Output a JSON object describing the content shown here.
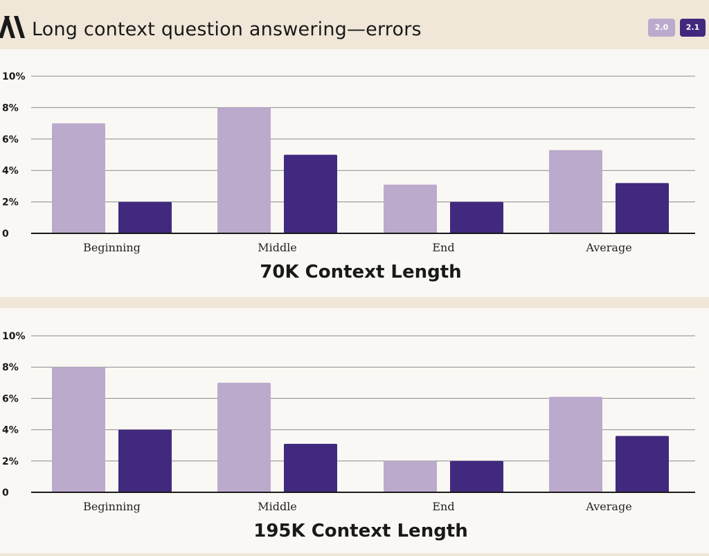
{
  "header": {
    "title": "Long context question answering—errors",
    "legend": [
      {
        "label": "2.0",
        "color": "#bcaacd"
      },
      {
        "label": "2.1",
        "color": "#41297e"
      }
    ]
  },
  "colors": {
    "v20": "#bcaacd",
    "v21": "#41297e",
    "grid": "#8a8a8a"
  },
  "chart_data": [
    {
      "type": "bar",
      "title": "70K Context Length",
      "categories": [
        "Beginning",
        "Middle",
        "End",
        "Average"
      ],
      "series": [
        {
          "name": "2.0",
          "values": [
            7,
            8,
            3.1,
            5.3
          ]
        },
        {
          "name": "2.1",
          "values": [
            2,
            5,
            2,
            3.2
          ]
        }
      ],
      "ylim": [
        0,
        10
      ],
      "yticks": [
        {
          "value": 0,
          "label": "0"
        },
        {
          "value": 2,
          "label": "2%"
        },
        {
          "value": 4,
          "label": "4%"
        },
        {
          "value": 6,
          "label": "6%"
        },
        {
          "value": 8,
          "label": "8%"
        },
        {
          "value": 10,
          "label": "10%"
        }
      ],
      "grid": true
    },
    {
      "type": "bar",
      "title": "195K Context Length",
      "categories": [
        "Beginning",
        "Middle",
        "End",
        "Average"
      ],
      "series": [
        {
          "name": "2.0",
          "values": [
            8,
            7,
            2,
            6.1
          ]
        },
        {
          "name": "2.1",
          "values": [
            4,
            3.1,
            2,
            3.6
          ]
        }
      ],
      "ylim": [
        0,
        10
      ],
      "yticks": [
        {
          "value": 0,
          "label": "0"
        },
        {
          "value": 2,
          "label": "2%"
        },
        {
          "value": 4,
          "label": "4%"
        },
        {
          "value": 6,
          "label": "6%"
        },
        {
          "value": 8,
          "label": "8%"
        },
        {
          "value": 10,
          "label": "10%"
        }
      ],
      "grid": true
    }
  ]
}
